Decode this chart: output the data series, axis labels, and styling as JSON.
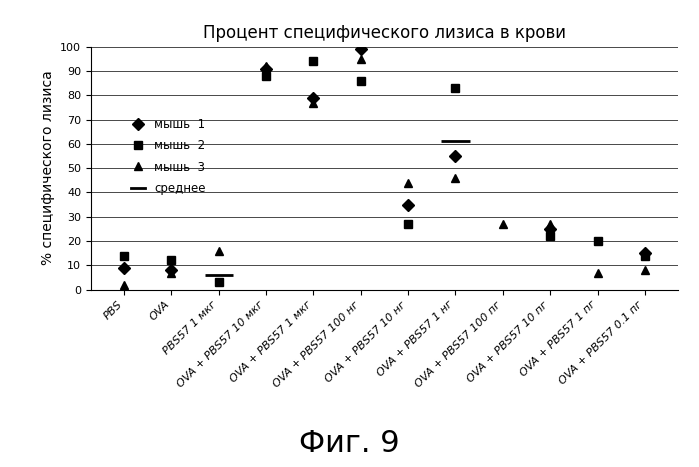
{
  "title": "Процент специфического лизиса в крови",
  "ylabel": "% специфического лизиса",
  "xlabel_fig": "Фиг. 9",
  "categories": [
    "PBS",
    "OVA",
    "PBS57 1 мкг",
    "OVA + PBS57 10 мкг",
    "OVA + PBS57 1 мкг",
    "OVA + PBS57 100 нг",
    "OVA + PBS57 10 нг",
    "OVA + PBS57 1 нг",
    "OVA + PBS57 100 пг",
    "OVA + PBS57 10 пг",
    "OVA + PBS57 1 пг",
    "OVA + PBS57 0.1 пг"
  ],
  "mouse1": [
    9,
    8,
    null,
    91,
    79,
    99,
    35,
    55,
    null,
    25,
    null,
    15
  ],
  "mouse2": [
    14,
    12,
    3,
    88,
    94,
    86,
    27,
    83,
    null,
    22,
    20,
    14
  ],
  "mouse3": [
    2,
    7,
    16,
    92,
    77,
    95,
    44,
    46,
    27,
    27,
    7,
    8
  ],
  "mean": [
    null,
    null,
    6,
    null,
    null,
    null,
    null,
    61,
    null,
    null,
    null,
    null
  ],
  "ylim": [
    0,
    100
  ],
  "legend_labels": [
    "мышь  1",
    "мышь  2",
    "мышь  3",
    "среднее"
  ],
  "yticks": [
    0,
    10,
    20,
    30,
    40,
    50,
    60,
    70,
    80,
    90,
    100
  ],
  "color_all": "black",
  "title_fontsize": 12,
  "ylabel_fontsize": 10,
  "tick_fontsize": 8,
  "fig_label_fontsize": 22
}
